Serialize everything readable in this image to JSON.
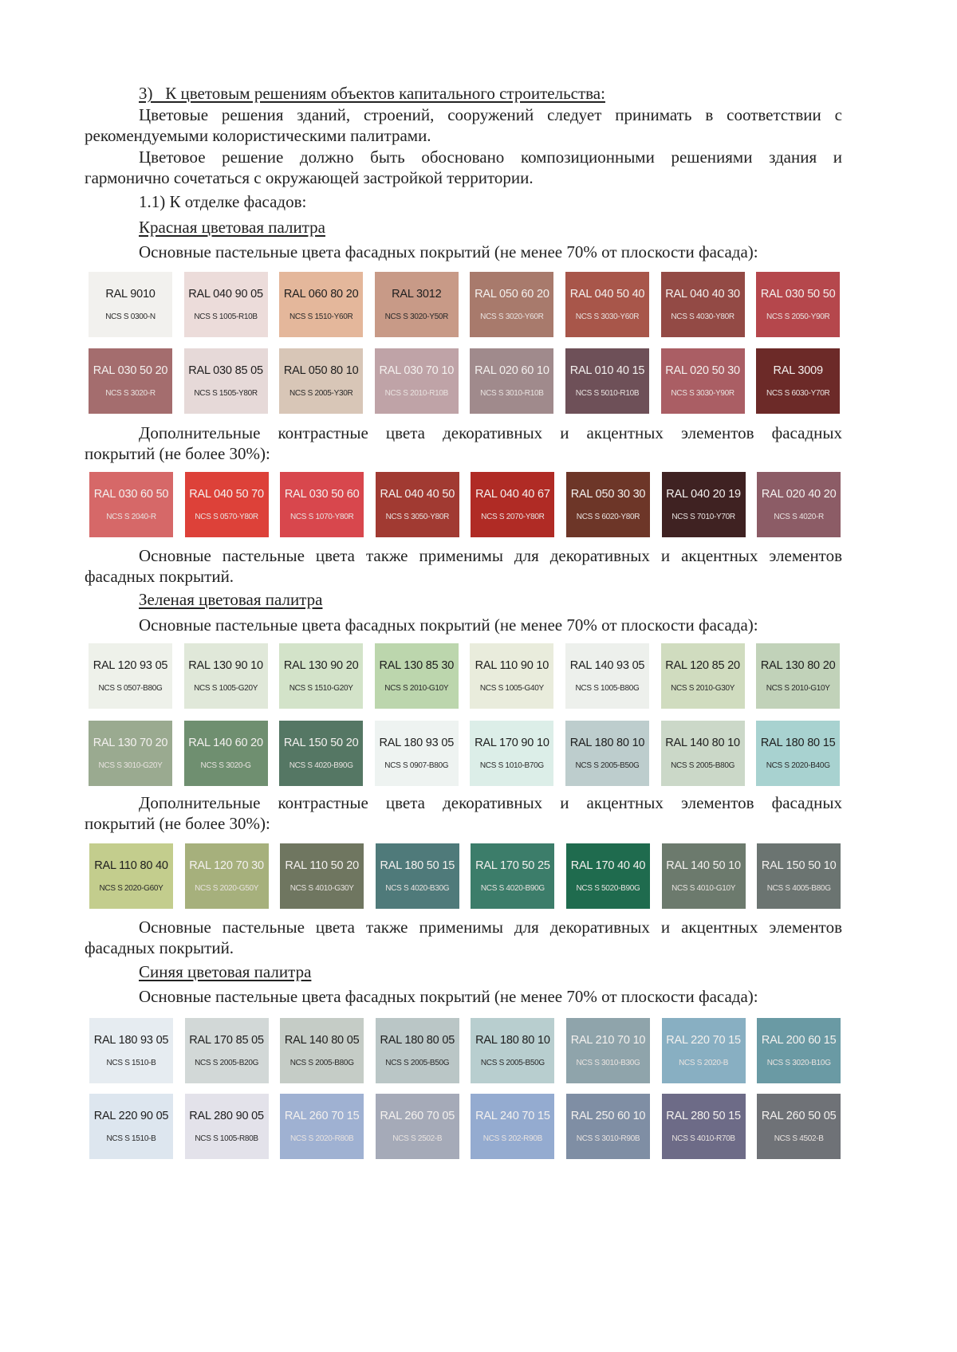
{
  "text": {
    "p1": "3)  К цветовым решениям объектов капитального строительства:",
    "p2a": "Цветовые решения зданий, строений, сооружений следует принимать в соответствии с",
    "p2b": "рекомендуемыми колористическими палитрами.",
    "p3a": "Цветовое решение должно быть обосновано композиционными решениями здания и",
    "p3b": "гармонично сочетаться с окружающей застройкой территории.",
    "p4": "1.1) К отделке фасадов:",
    "red_heading": "Красная цветовая палитра",
    "red_main": "Основные пастельные цвета фасадных покрытий (не менее 70% от плоскости фасада):",
    "red_extra_a": "Дополнительные контрастные цвета декоративных и акцентных элементов фасадных",
    "red_extra_b": "покрытий (не более 30%):",
    "red_note_a": "Основные пастельные цвета также применимы для декоративных и акцентных элементов",
    "red_note_b": "фасадных покрытий.",
    "green_heading": "Зеленая цветовая палитра",
    "green_main": "Основные пастельные цвета фасадных покрытий (не менее 70% от плоскости фасада):",
    "green_extra_a": "Дополнительные контрастные цвета декоративных и акцентных элементов фасадных",
    "green_extra_b": "покрытий (не более 30%):",
    "green_note_a": "Основные пастельные цвета также применимы для декоративных и акцентных элементов",
    "green_note_b": "фасадных покрытий.",
    "blue_heading": "Синяя цветовая палитра",
    "blue_main": "Основные пастельные цвета фасадных покрытий (не менее 70% от плоскости фасада):"
  },
  "swatches": {
    "red_main_1": [
      {
        "ral": "RAL 9010",
        "ncs": "NCS S 0300-N",
        "color": "#f2f1ee",
        "tone": "dark"
      },
      {
        "ral": "RAL 040 90 05",
        "ncs": "NCS S 1005-R10B",
        "color": "#ecdcda",
        "tone": "dark"
      },
      {
        "ral": "RAL 060 80 20",
        "ncs": "NCS S 1510-Y60R",
        "color": "#e4b79b",
        "tone": "dark"
      },
      {
        "ral": "RAL 3012",
        "ncs": "NCS S 3020-Y50R",
        "color": "#c89a87",
        "tone": "dark"
      },
      {
        "ral": "RAL 050 60 20",
        "ncs": "NCS S 3020-Y60R",
        "color": "#a87a6c",
        "tone": "light"
      },
      {
        "ral": "RAL 040 50 40",
        "ncs": "NCS S 3030-Y60R",
        "color": "#a8564a",
        "tone": "light"
      },
      {
        "ral": "RAL 040 40 30",
        "ncs": "NCS S 4030-Y80R",
        "color": "#934a45",
        "tone": "light"
      },
      {
        "ral": "RAL 030 50 50",
        "ncs": "NCS S 2050-Y90R",
        "color": "#b5474c",
        "tone": "light"
      }
    ],
    "red_main_2": [
      {
        "ral": "RAL 030 50 20",
        "ncs": "NCS S 3020-R",
        "color": "#a46d6e",
        "tone": "light"
      },
      {
        "ral": "RAL 030 85 05",
        "ncs": "NCS S 1505-Y80R",
        "color": "#e6d9d8",
        "tone": "dark"
      },
      {
        "ral": "RAL 050 80 10",
        "ncs": "NCS S 2005-Y30R",
        "color": "#d8c6b7",
        "tone": "dark"
      },
      {
        "ral": "RAL 030 70 10",
        "ncs": "NCS S 2010-R10B",
        "color": "#bfa3a7",
        "tone": "light"
      },
      {
        "ral": "RAL 020 60 10",
        "ncs": "NCS S 3010-R10B",
        "color": "#a08a8c",
        "tone": "light"
      },
      {
        "ral": "RAL 010 40 15",
        "ncs": "NCS S 5010-R10B",
        "color": "#6e5058",
        "tone": "light"
      },
      {
        "ral": "RAL 020 50 30",
        "ncs": "NCS S 3030-Y90R",
        "color": "#aa5e64",
        "tone": "light"
      },
      {
        "ral": "RAL 3009",
        "ncs": "NCS S 6030-Y70R",
        "color": "#6c2a28",
        "tone": "light"
      }
    ],
    "red_extra": [
      {
        "ral": "RAL 030 60 50",
        "ncs": "NCS S 2040-R",
        "color": "#d66868",
        "tone": "light"
      },
      {
        "ral": "RAL 040 50 70",
        "ncs": "NCS S 0570-Y80R",
        "color": "#dd4139",
        "tone": "light"
      },
      {
        "ral": "RAL 030 50 60",
        "ncs": "NCS S 1070-Y80R",
        "color": "#d8474d",
        "tone": "light"
      },
      {
        "ral": "RAL 040 40 50",
        "ncs": "NCS S 3050-Y80R",
        "color": "#a13a32",
        "tone": "light"
      },
      {
        "ral": "RAL 040 40 67",
        "ncs": "NCS S 2070-Y80R",
        "color": "#b02b25",
        "tone": "light"
      },
      {
        "ral": "RAL 050 30 30",
        "ncs": "NCS S 6020-Y80R",
        "color": "#6d3628",
        "tone": "light"
      },
      {
        "ral": "RAL 040 20 19",
        "ncs": "NCS S 7010-Y70R",
        "color": "#3f2222",
        "tone": "light"
      },
      {
        "ral": "RAL 020 40 20",
        "ncs": "NCS S 4020-R",
        "color": "#8c5c66",
        "tone": "light"
      }
    ],
    "green_main_1": [
      {
        "ral": "RAL 120 93 05",
        "ncs": "NCS S 0507-B80G",
        "color": "#eef1ea",
        "tone": "dark"
      },
      {
        "ral": "RAL 130 90 10",
        "ncs": "NCS S 1005-G20Y",
        "color": "#e0e8d9",
        "tone": "dark"
      },
      {
        "ral": "RAL 130 90 20",
        "ncs": "NCS S 1510-G20Y",
        "color": "#d3e3c9",
        "tone": "dark"
      },
      {
        "ral": "RAL 130 85 30",
        "ncs": "NCS S 2010-G10Y",
        "color": "#bcd6ad",
        "tone": "dark"
      },
      {
        "ral": "RAL 110 90 10",
        "ncs": "NCS S 1005-G40Y",
        "color": "#e9ecdc",
        "tone": "dark"
      },
      {
        "ral": "RAL 140 93 05",
        "ncs": "NCS S 1005-B80G",
        "color": "#edf0ec",
        "tone": "dark"
      },
      {
        "ral": "RAL 120 85 20",
        "ncs": "NCS S 2010-G30Y",
        "color": "#d0dcbf",
        "tone": "dark"
      },
      {
        "ral": "RAL 130 80 20",
        "ncs": "NCS S 2010-G10Y",
        "color": "#c1d2b9",
        "tone": "dark"
      }
    ],
    "green_main_2": [
      {
        "ral": "RAL 130 70 20",
        "ncs": "NCS S 3010-G20Y",
        "color": "#9aaa90",
        "tone": "light"
      },
      {
        "ral": "RAL 140 60 20",
        "ncs": "NCS S 3020-G",
        "color": "#6f8f70",
        "tone": "light"
      },
      {
        "ral": "RAL 150 50 20",
        "ncs": "NCS S 4020-B90G",
        "color": "#557764",
        "tone": "light"
      },
      {
        "ral": "RAL 180 93 05",
        "ncs": "NCS S 0907-B80G",
        "color": "#eef3f1",
        "tone": "dark"
      },
      {
        "ral": "RAL 170 90 10",
        "ncs": "NCS S 1010-B70G",
        "color": "#dceee8",
        "tone": "dark"
      },
      {
        "ral": "RAL 180 80 10",
        "ncs": "NCS S 2005-B50G",
        "color": "#bdcdcd",
        "tone": "dark"
      },
      {
        "ral": "RAL 140 80 10",
        "ncs": "NCS S 2005-B80G",
        "color": "#cbd8c8",
        "tone": "dark"
      },
      {
        "ral": "RAL 180 80 15",
        "ncs": "NCS S 2020-B40G",
        "color": "#a8d2d0",
        "tone": "dark"
      }
    ],
    "green_extra": [
      {
        "ral": "RAL 110 80 40",
        "ncs": "NCS S 2020-G60Y",
        "color": "#c3cd8d",
        "tone": "dark"
      },
      {
        "ral": "RAL 120 70 30",
        "ncs": "NCS S 2020-G50Y",
        "color": "#a6b07c",
        "tone": "light"
      },
      {
        "ral": "RAL 110 50 20",
        "ncs": "NCS S 4010-G30Y",
        "color": "#6f7660",
        "tone": "light"
      },
      {
        "ral": "RAL 180 50 15",
        "ncs": "NCS S 4020-B30G",
        "color": "#4f7a7a",
        "tone": "light"
      },
      {
        "ral": "RAL 170 50 25",
        "ncs": "NCS S 4020-B90G",
        "color": "#3c7d6a",
        "tone": "light"
      },
      {
        "ral": "RAL 170 40 40",
        "ncs": "NCS S 5020-B90G",
        "color": "#1f6b4e",
        "tone": "light"
      },
      {
        "ral": "RAL 140 50 10",
        "ncs": "NCS S 4010-G10Y",
        "color": "#6c7a6d",
        "tone": "light"
      },
      {
        "ral": "RAL 150 50 10",
        "ncs": "NCS S 4005-B80G",
        "color": "#6b7471",
        "tone": "light"
      }
    ],
    "blue_main_1": [
      {
        "ral": "RAL 180 93 05",
        "ncs": "NCS S 1510-B",
        "color": "#e6ecf1",
        "tone": "dark"
      },
      {
        "ral": "RAL 170 85 05",
        "ncs": "NCS S 2005-B20G",
        "color": "#d2d8d7",
        "tone": "dark"
      },
      {
        "ral": "RAL 140 80 05",
        "ncs": "NCS S 2005-B80G",
        "color": "#c5ccc6",
        "tone": "dark"
      },
      {
        "ral": "RAL 180 80 05",
        "ncs": "NCS S 2005-B50G",
        "color": "#bac6c6",
        "tone": "dark"
      },
      {
        "ral": "RAL 180 80 10",
        "ncs": "NCS S 2005-B50G",
        "color": "#b8cecf",
        "tone": "dark"
      },
      {
        "ral": "RAL 210 70 10",
        "ncs": "NCS S 3010-B30G",
        "color": "#8fa4ab",
        "tone": "light"
      },
      {
        "ral": "RAL 220 70 15",
        "ncs": "NCS S 2020-B",
        "color": "#88afc2",
        "tone": "light"
      },
      {
        "ral": "RAL 200 60 15",
        "ncs": "NCS S 3020-B10G",
        "color": "#6a9aa4",
        "tone": "light"
      }
    ],
    "blue_main_2": [
      {
        "ral": "RAL 220 90 05",
        "ncs": "NCS S 1510-B",
        "color": "#dde6ef",
        "tone": "dark"
      },
      {
        "ral": "RAL 280 90 05",
        "ncs": "NCS S 1005-R80B",
        "color": "#e3e2ea",
        "tone": "dark"
      },
      {
        "ral": "RAL 260 70 15",
        "ncs": "NCS S 2020-R80B",
        "color": "#9fb1d2",
        "tone": "light"
      },
      {
        "ral": "RAL 260 70 05",
        "ncs": "NCS S 2502-B",
        "color": "#a5aab8",
        "tone": "light"
      },
      {
        "ral": "RAL 240 70 15",
        "ncs": "NCS S 202-R90B",
        "color": "#94abd0",
        "tone": "light"
      },
      {
        "ral": "RAL 250 60 10",
        "ncs": "NCS S 3010-R90B",
        "color": "#7f8ea4",
        "tone": "light"
      },
      {
        "ral": "RAL 280 50 15",
        "ncs": "NCS S 4010-R70B",
        "color": "#6d6b87",
        "tone": "light"
      },
      {
        "ral": "RAL 260 50 05",
        "ncs": "NCS S 4502-B",
        "color": "#6f7277",
        "tone": "light"
      }
    ]
  }
}
